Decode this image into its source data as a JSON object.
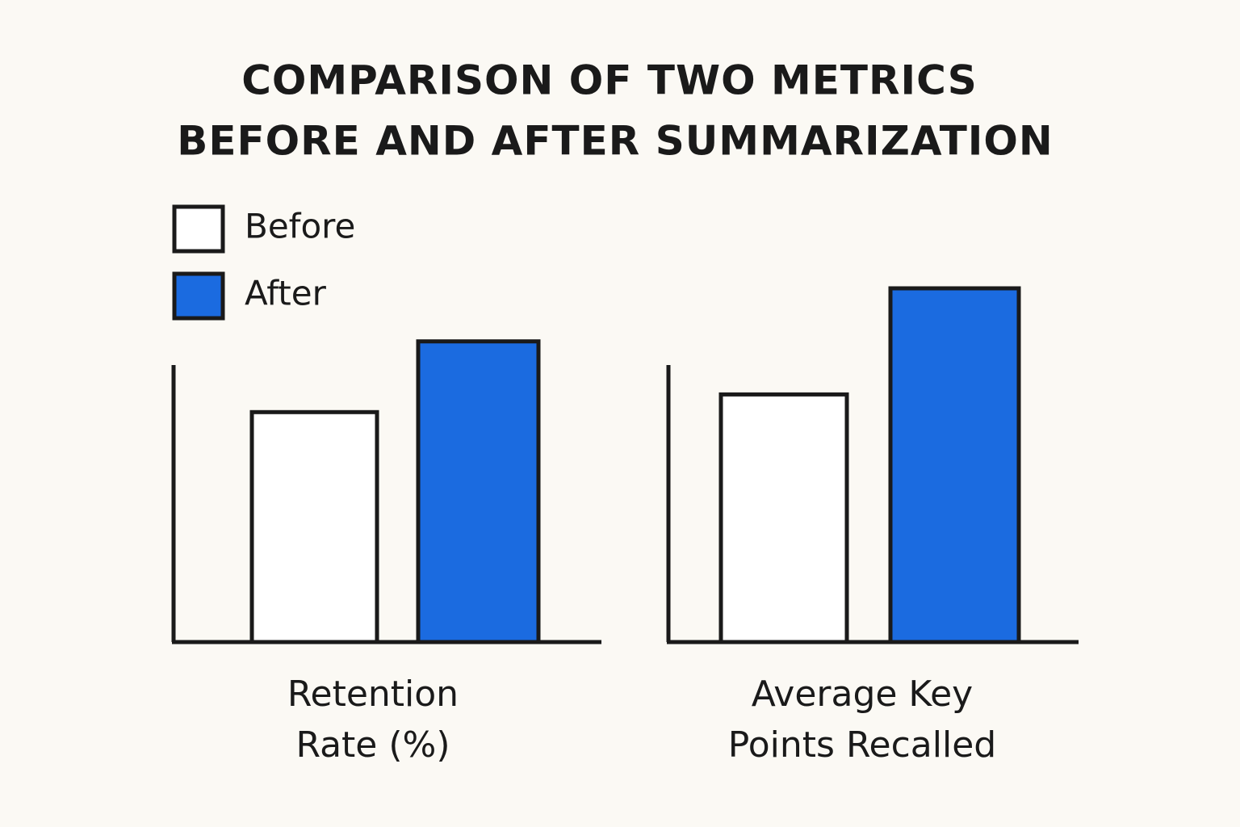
{
  "title": [
    "COMPARISON OF TWO METRICS",
    "BEFORE AND AFTER SUMMARIZATION"
  ],
  "chart_data": [
    {
      "type": "bar",
      "xlabel": [
        "Retention",
        "Rate (%)"
      ],
      "ylim": [
        0,
        100
      ],
      "series": [
        {
          "name": "Before",
          "color": "#ffffff",
          "values": [
            65
          ]
        },
        {
          "name": "After",
          "color": "#1b6be0",
          "values": [
            85
          ]
        }
      ]
    },
    {
      "type": "bar",
      "xlabel": [
        "Average Key",
        "Points Recalled"
      ],
      "ylim": [
        0,
        100
      ],
      "series": [
        {
          "color": "#ffffff",
          "values": [
            70
          ]
        },
        {
          "color": "#1b6be0",
          "values": [
            100
          ]
        }
      ]
    }
  ]
}
